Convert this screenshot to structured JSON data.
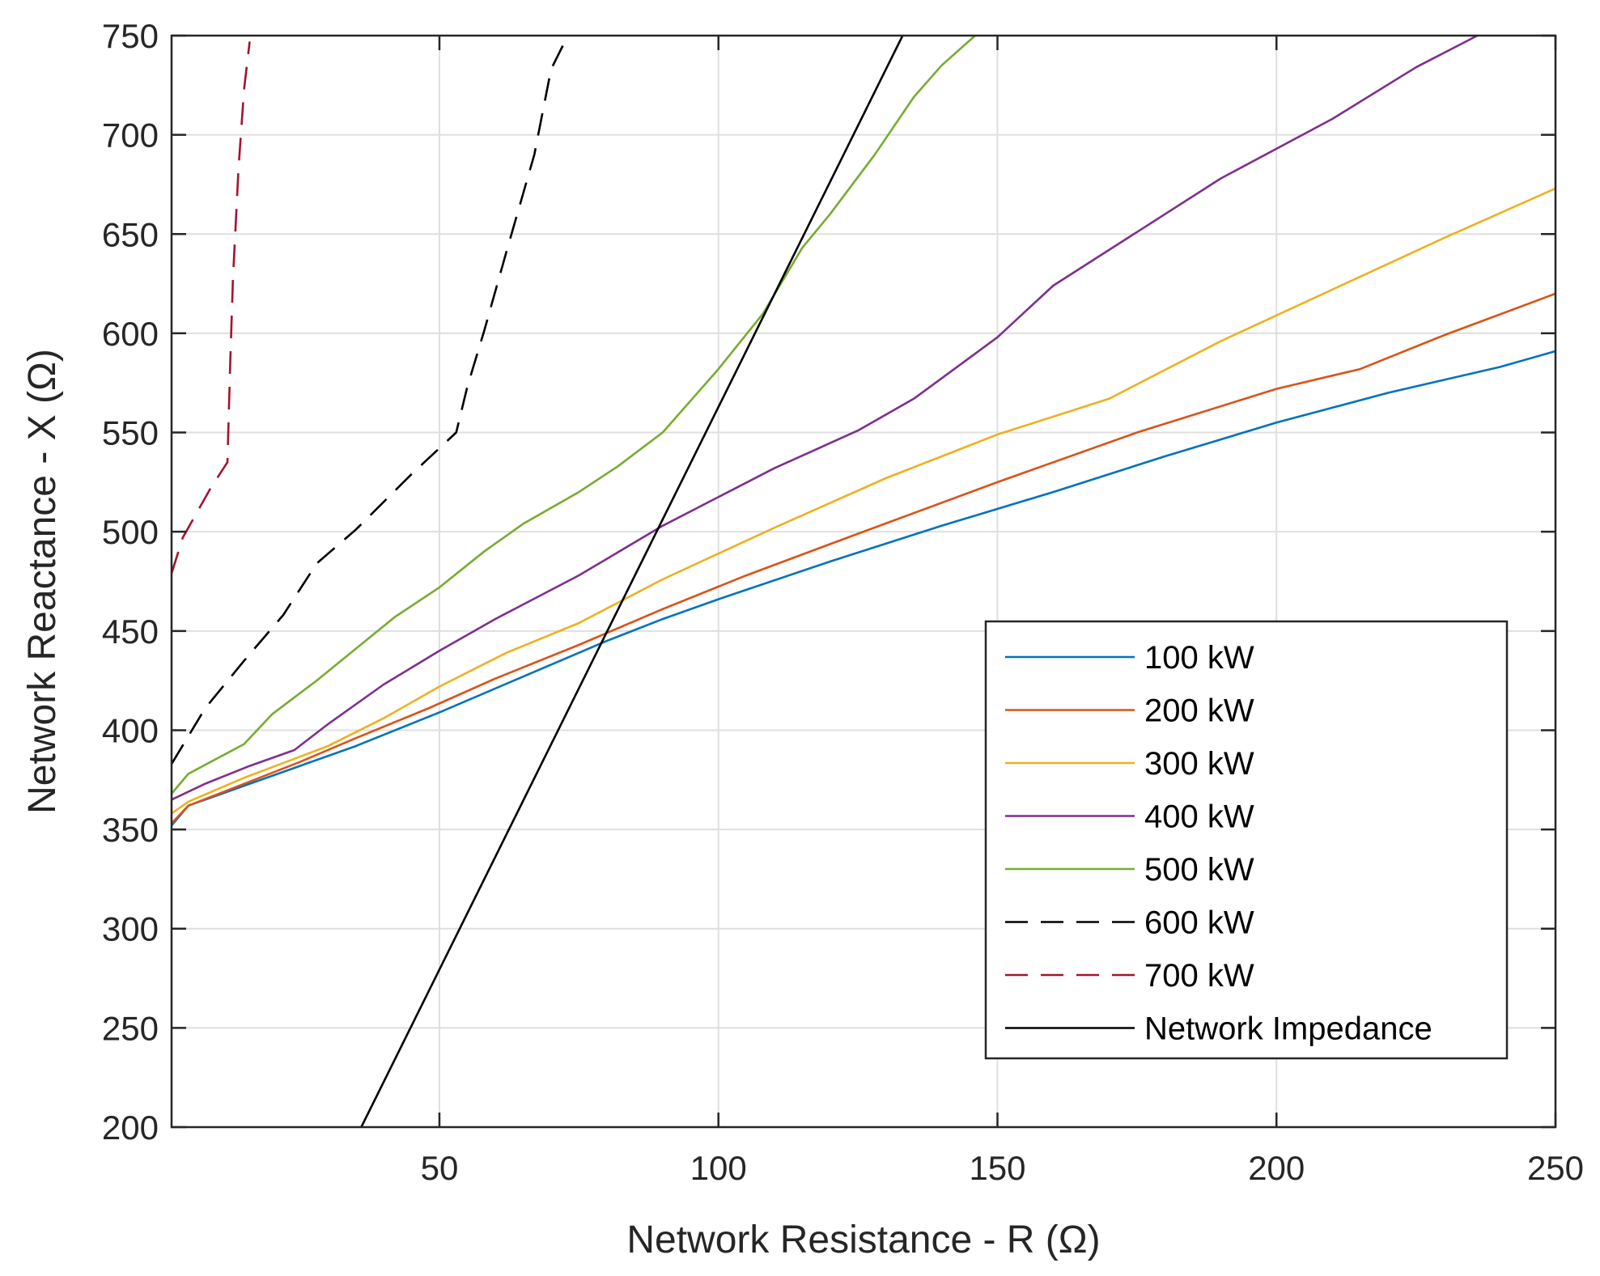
{
  "chart_data": {
    "type": "line",
    "title": "",
    "xlabel": "Network Resistance - R (Ω)",
    "ylabel": "Network Reactance - X (Ω)",
    "xlim": [
      2,
      250
    ],
    "ylim": [
      200,
      750
    ],
    "xticks": [
      50,
      100,
      150,
      200,
      250
    ],
    "yticks": [
      200,
      250,
      300,
      350,
      400,
      450,
      500,
      550,
      600,
      650,
      700,
      750
    ],
    "xtick_labels": [
      "50",
      "100",
      "150",
      "200",
      "250"
    ],
    "ytick_labels": [
      "200",
      "250",
      "300",
      "350",
      "400",
      "450",
      "500",
      "550",
      "600",
      "650",
      "700",
      "750"
    ],
    "grid": true,
    "legend_position": "bottom-right",
    "series": [
      {
        "name": "100 kW",
        "color": "#0072BD",
        "dash": "solid",
        "x": [
          2,
          5,
          15,
          25,
          35,
          50,
          65,
          80,
          90,
          100,
          120,
          140,
          160,
          180,
          200,
          220,
          240,
          250
        ],
        "y": [
          352,
          362,
          372,
          382,
          392,
          409,
          427,
          445,
          456,
          466,
          485,
          503,
          520,
          538,
          555,
          570,
          583,
          591
        ]
      },
      {
        "name": "200 kW",
        "color": "#D95319",
        "dash": "solid",
        "x": [
          2,
          5,
          15,
          25,
          35,
          48,
          60,
          75,
          90,
          105,
          125,
          150,
          175,
          200,
          215,
          230,
          250
        ],
        "y": [
          353,
          362,
          373,
          384,
          396,
          411,
          426,
          443,
          461,
          478,
          499,
          525,
          550,
          572,
          582,
          599,
          620
        ]
      },
      {
        "name": "300 kW",
        "color": "#EDB120",
        "dash": "solid",
        "x": [
          2,
          5,
          15,
          30,
          40,
          50,
          62,
          75,
          90,
          110,
          130,
          150,
          170,
          190,
          210,
          230,
          250
        ],
        "y": [
          358,
          364,
          376,
          392,
          406,
          422,
          439,
          454,
          476,
          502,
          527,
          549,
          567,
          596,
          622,
          648,
          673
        ]
      },
      {
        "name": "400 kW",
        "color": "#7E2F8E",
        "dash": "solid",
        "x": [
          2,
          8,
          16,
          24,
          30,
          40,
          50,
          60,
          75,
          90,
          110,
          125,
          135,
          150,
          160,
          175,
          190,
          210,
          225,
          236
        ],
        "y": [
          365,
          373,
          382,
          390,
          403,
          423,
          440,
          456,
          478,
          503,
          532,
          551,
          567,
          598,
          624,
          651,
          678,
          708,
          734,
          750
        ]
      },
      {
        "name": "500 kW",
        "color": "#77AC30",
        "dash": "solid",
        "x": [
          2,
          5,
          15,
          20,
          28,
          35,
          42,
          50,
          58,
          65,
          75,
          82,
          90,
          95,
          100,
          108,
          115,
          120,
          128,
          135,
          140,
          146
        ],
        "y": [
          368,
          378,
          393,
          408,
          425,
          441,
          457,
          472,
          490,
          504,
          520,
          533,
          550,
          566,
          582,
          610,
          643,
          660,
          690,
          719,
          735,
          750
        ]
      },
      {
        "name": "600 kW",
        "color": "#000000",
        "dash": "dashed",
        "x": [
          2,
          8,
          15,
          22,
          28,
          35,
          45,
          53,
          55,
          58,
          62,
          67,
          70,
          73
        ],
        "y": [
          383,
          411,
          435,
          458,
          484,
          501,
          529,
          550,
          573,
          601,
          641,
          690,
          733,
          750
        ]
      },
      {
        "name": "700 kW",
        "color": "#A2142F",
        "dash": "dashed",
        "x": [
          2,
          4,
          9,
          12,
          12.5,
          13,
          14,
          15,
          16
        ],
        "y": [
          479,
          497,
          522,
          535,
          584,
          627,
          683,
          723,
          747
        ]
      },
      {
        "name": "Network Impedance",
        "color": "#000000",
        "dash": "solid",
        "x": [
          36,
          133
        ],
        "y": [
          200,
          750
        ]
      }
    ]
  }
}
